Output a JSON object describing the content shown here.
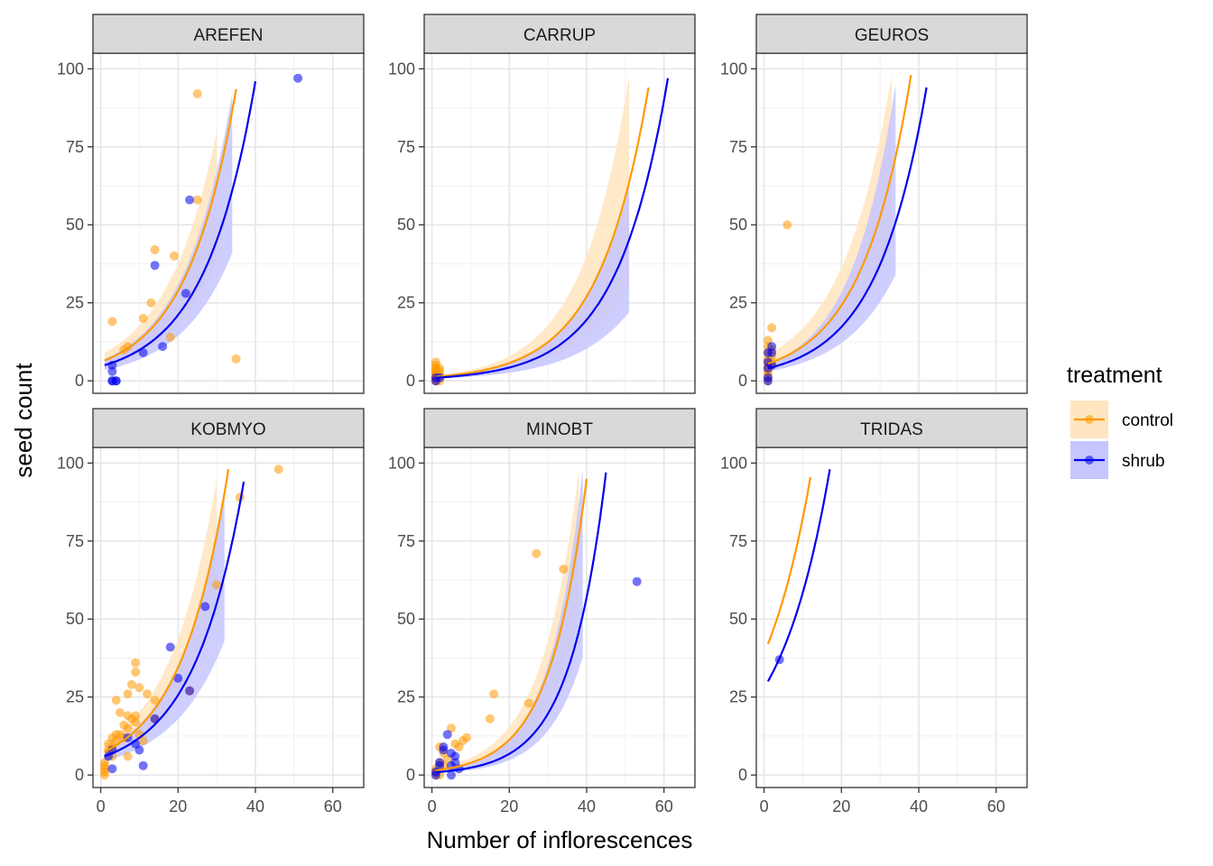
{
  "chart_data": {
    "type": "scatter",
    "subtype": "faceted scatter with fitted exponential curves and confidence ribbons",
    "xlabel": "Number of inflorescences",
    "ylabel": "seed count",
    "xlim": [
      -2,
      68
    ],
    "ylim": [
      -4,
      105
    ],
    "x_ticks": [
      0,
      20,
      40,
      60
    ],
    "y_ticks": [
      0,
      25,
      50,
      75,
      100
    ],
    "grid": true,
    "legend": {
      "title": "treatment",
      "placement": "right",
      "entries": [
        {
          "label": "control",
          "color": "#FF9900",
          "fill": "#FFE5C0"
        },
        {
          "label": "shrub",
          "color": "#0000EE",
          "fill": "#C6C6FF"
        }
      ]
    },
    "colors": {
      "control": "#FF9900",
      "shrub": "#0000EE"
    },
    "facets": [
      {
        "name": "AREFEN",
        "points": {
          "control": [
            [
              3,
              19
            ],
            [
              6,
              10
            ],
            [
              7,
              11
            ],
            [
              11,
              20
            ],
            [
              13,
              25
            ],
            [
              14,
              42
            ],
            [
              18,
              14
            ],
            [
              19,
              40
            ],
            [
              25,
              92
            ],
            [
              25,
              58
            ],
            [
              35,
              7
            ]
          ],
          "shrub": [
            [
              3,
              5
            ],
            [
              3,
              3
            ],
            [
              3,
              0
            ],
            [
              3,
              0
            ],
            [
              4,
              0
            ],
            [
              4,
              0
            ],
            [
              11,
              9
            ],
            [
              14,
              37
            ],
            [
              16,
              11
            ],
            [
              22,
              28
            ],
            [
              23,
              58
            ],
            [
              51,
              97
            ]
          ]
        },
        "curves": {
          "control": {
            "x": [
              1,
              35
            ],
            "y": [
              6.5,
              93.5
            ],
            "band_x": [
              1,
              30
            ],
            "band_lo": [
              4.5,
              38
            ],
            "band_hi": [
              9,
              80
            ]
          },
          "shrub": {
            "x": [
              1,
              40
            ],
            "y": [
              5,
              96
            ],
            "band_x": [
              1,
              34
            ],
            "band_lo": [
              3.5,
              41
            ],
            "band_hi": [
              7,
              92
            ]
          }
        }
      },
      {
        "name": "CARRUP",
        "points": {
          "control": [
            [
              1,
              6
            ],
            [
              1,
              5
            ],
            [
              1,
              4
            ],
            [
              1,
              4
            ],
            [
              1,
              3
            ],
            [
              1,
              3
            ],
            [
              1,
              2
            ],
            [
              1,
              2
            ],
            [
              1,
              1
            ],
            [
              1,
              1
            ],
            [
              1,
              0
            ],
            [
              1,
              0
            ],
            [
              2,
              4
            ],
            [
              2,
              3
            ],
            [
              2,
              2
            ],
            [
              2,
              1
            ],
            [
              2,
              0
            ]
          ],
          "shrub": [
            [
              1,
              1
            ],
            [
              1,
              0
            ],
            [
              2,
              1
            ]
          ]
        },
        "curves": {
          "control": {
            "x": [
              1,
              56
            ],
            "y": [
              1.3,
              94
            ],
            "band_x": [
              1,
              51
            ],
            "band_lo": [
              1.0,
              30
            ],
            "band_hi": [
              1.7,
              98
            ]
          },
          "shrub": {
            "x": [
              1,
              61
            ],
            "y": [
              1.0,
              97
            ],
            "band_x": [
              1,
              51
            ],
            "band_lo": [
              0.7,
              22
            ],
            "band_hi": [
              1.4,
              62
            ]
          }
        }
      },
      {
        "name": "GEUROS",
        "points": {
          "control": [
            [
              1,
              13
            ],
            [
              1,
              11
            ],
            [
              1,
              9
            ],
            [
              1,
              7
            ],
            [
              1,
              6
            ],
            [
              1,
              5
            ],
            [
              1,
              4
            ],
            [
              1,
              3
            ],
            [
              1,
              2
            ],
            [
              1,
              1
            ],
            [
              1,
              0
            ],
            [
              2,
              17
            ],
            [
              2,
              10
            ],
            [
              2,
              8
            ],
            [
              2,
              6
            ],
            [
              2,
              5
            ],
            [
              6,
              50
            ]
          ],
          "shrub": [
            [
              1,
              9
            ],
            [
              1,
              6
            ],
            [
              1,
              4
            ],
            [
              1,
              1
            ],
            [
              1,
              0
            ],
            [
              2,
              11
            ],
            [
              2,
              9
            ],
            [
              2,
              5
            ]
          ]
        },
        "curves": {
          "control": {
            "x": [
              1,
              38
            ],
            "y": [
              5.5,
              98
            ],
            "band_x": [
              1,
              33
            ],
            "band_lo": [
              3.5,
              45
            ],
            "band_hi": [
              8.5,
              98
            ]
          },
          "shrub": {
            "x": [
              1,
              42
            ],
            "y": [
              4.0,
              94
            ],
            "band_x": [
              1,
              34
            ],
            "band_lo": [
              3.0,
              34
            ],
            "band_hi": [
              5.5,
              95
            ]
          }
        }
      },
      {
        "name": "KOBMYO",
        "points": {
          "control": [
            [
              1,
              4
            ],
            [
              1,
              3
            ],
            [
              1,
              2
            ],
            [
              1,
              1
            ],
            [
              1,
              0
            ],
            [
              2,
              10
            ],
            [
              2,
              8
            ],
            [
              3,
              6
            ],
            [
              3,
              9
            ],
            [
              3,
              12
            ],
            [
              4,
              11
            ],
            [
              4,
              13
            ],
            [
              4,
              24
            ],
            [
              5,
              13
            ],
            [
              5,
              20
            ],
            [
              6,
              16
            ],
            [
              6,
              12
            ],
            [
              7,
              6
            ],
            [
              7,
              19
            ],
            [
              7,
              26
            ],
            [
              7,
              15
            ],
            [
              8,
              29
            ],
            [
              8,
              18
            ],
            [
              9,
              36
            ],
            [
              9,
              33
            ],
            [
              9,
              19
            ],
            [
              9,
              17
            ],
            [
              10,
              28
            ],
            [
              10,
              13
            ],
            [
              11,
              11
            ],
            [
              12,
              26
            ],
            [
              14,
              24
            ],
            [
              14,
              18
            ],
            [
              23,
              27
            ],
            [
              30,
              61
            ],
            [
              36,
              89
            ],
            [
              46,
              98
            ]
          ],
          "shrub": [
            [
              2,
              6
            ],
            [
              3,
              2
            ],
            [
              3,
              8
            ],
            [
              7,
              12
            ],
            [
              9,
              10
            ],
            [
              10,
              8
            ],
            [
              11,
              3
            ],
            [
              14,
              18
            ],
            [
              18,
              41
            ],
            [
              20,
              31
            ],
            [
              23,
              27
            ],
            [
              27,
              54
            ]
          ]
        },
        "curves": {
          "control": {
            "x": [
              1,
              33
            ],
            "y": [
              7.5,
              98
            ],
            "band_x": [
              1,
              30
            ],
            "band_lo": [
              5.5,
              58
            ],
            "band_hi": [
              10,
              95
            ]
          },
          "shrub": {
            "x": [
              1,
              37
            ],
            "y": [
              6.0,
              94
            ],
            "band_x": [
              1,
              32
            ],
            "band_lo": [
              4.5,
              43
            ],
            "band_hi": [
              8,
              90
            ]
          }
        }
      },
      {
        "name": "MINOBT",
        "points": {
          "control": [
            [
              1,
              0
            ],
            [
              1,
              1
            ],
            [
              1,
              2
            ],
            [
              2,
              0
            ],
            [
              2,
              4
            ],
            [
              2,
              9
            ],
            [
              3,
              3
            ],
            [
              3,
              7
            ],
            [
              4,
              5
            ],
            [
              5,
              15
            ],
            [
              6,
              10
            ],
            [
              7,
              9
            ],
            [
              8,
              11
            ],
            [
              9,
              12
            ],
            [
              15,
              18
            ],
            [
              16,
              26
            ],
            [
              25,
              23
            ],
            [
              27,
              71
            ],
            [
              34,
              66
            ]
          ],
          "shrub": [
            [
              1,
              0
            ],
            [
              1,
              1
            ],
            [
              2,
              3
            ],
            [
              2,
              4
            ],
            [
              3,
              8
            ],
            [
              3,
              9
            ],
            [
              4,
              13
            ],
            [
              5,
              0
            ],
            [
              5,
              3
            ],
            [
              5,
              7
            ],
            [
              6,
              4
            ],
            [
              6,
              6
            ],
            [
              7,
              2
            ],
            [
              53,
              62
            ]
          ]
        },
        "curves": {
          "control": {
            "x": [
              1,
              40
            ],
            "y": [
              1.5,
              95
            ],
            "band_x": [
              1,
              38
            ],
            "band_lo": [
              1.0,
              52
            ],
            "band_hi": [
              2.2,
              98
            ]
          },
          "shrub": {
            "x": [
              1,
              45
            ],
            "y": [
              0.9,
              97
            ],
            "band_x": [
              1,
              39
            ],
            "band_lo": [
              0.6,
              38
            ],
            "band_hi": [
              1.3,
              98
            ]
          }
        }
      },
      {
        "name": "TRIDAS",
        "points": {
          "control": [],
          "shrub": [
            [
              4,
              37
            ]
          ]
        },
        "curves": {
          "control": {
            "x": [
              1,
              12
            ],
            "y": [
              42,
              95.5
            ],
            "band_x": [],
            "band_lo": [],
            "band_hi": []
          },
          "shrub": {
            "x": [
              1,
              17
            ],
            "y": [
              30,
              98
            ],
            "band_x": [],
            "band_lo": [],
            "band_hi": []
          }
        }
      }
    ]
  }
}
